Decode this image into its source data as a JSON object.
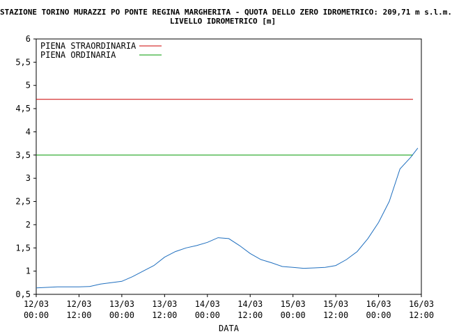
{
  "chart_data": {
    "type": "line",
    "title": "STAZIONE TORINO MURAZZI PO PONTE REGINA MARGHERITA - QUOTA DELLO ZERO IDROMETRICO: 209,71 m s.l.m.",
    "subtitle": "LIVELLO IDROMETRICO [m]",
    "xlabel": "DATA",
    "ylabel": "",
    "ylim": [
      0.5,
      6
    ],
    "yticks": [
      "0,5",
      "1",
      "1,5",
      "2",
      "2,5",
      "3",
      "3,5",
      "4",
      "4,5",
      "5",
      "5,5",
      "6"
    ],
    "xlim": [
      "12/03 00:00",
      "16/03 12:00"
    ],
    "xticks": [
      {
        "date": "12/03",
        "time": "00:00"
      },
      {
        "date": "12/03",
        "time": "12:00"
      },
      {
        "date": "13/03",
        "time": "00:00"
      },
      {
        "date": "13/03",
        "time": "12:00"
      },
      {
        "date": "14/03",
        "time": "00:00"
      },
      {
        "date": "14/03",
        "time": "12:00"
      },
      {
        "date": "15/03",
        "time": "00:00"
      },
      {
        "date": "15/03",
        "time": "12:00"
      },
      {
        "date": "16/03",
        "time": "00:00"
      },
      {
        "date": "16/03",
        "time": "12:00"
      }
    ],
    "grid": false,
    "legend_position": "top-left",
    "thresholds": [
      {
        "name": "PIENA STRAORDINARIA",
        "value": 4.7,
        "color": "#cc0000"
      },
      {
        "name": "PIENA ORDINARIA",
        "value": 3.5,
        "color": "#009900"
      }
    ],
    "series": [
      {
        "color": "#1f6fbf",
        "x": [
          "12/03 00:00",
          "12/03 03:00",
          "12/03 06:00",
          "12/03 09:00",
          "12/03 12:00",
          "12/03 15:00",
          "12/03 18:00",
          "12/03 21:00",
          "13/03 00:00",
          "13/03 03:00",
          "13/03 06:00",
          "13/03 09:00",
          "13/03 12:00",
          "13/03 15:00",
          "13/03 18:00",
          "13/03 21:00",
          "14/03 00:00",
          "14/03 03:00",
          "14/03 06:00",
          "14/03 09:00",
          "14/03 12:00",
          "14/03 15:00",
          "14/03 18:00",
          "14/03 21:00",
          "15/03 00:00",
          "15/03 03:00",
          "15/03 06:00",
          "15/03 09:00",
          "15/03 12:00",
          "15/03 15:00",
          "15/03 18:00",
          "15/03 21:00",
          "16/03 00:00",
          "16/03 03:00",
          "16/03 06:00",
          "16/03 09:00",
          "16/03 11:00"
        ],
        "values": [
          0.64,
          0.65,
          0.66,
          0.66,
          0.66,
          0.67,
          0.72,
          0.75,
          0.78,
          0.88,
          1.0,
          1.12,
          1.3,
          1.42,
          1.5,
          1.55,
          1.62,
          1.72,
          1.7,
          1.55,
          1.38,
          1.25,
          1.18,
          1.1,
          1.08,
          1.06,
          1.07,
          1.08,
          1.12,
          1.25,
          1.42,
          1.7,
          2.05,
          2.5,
          3.2,
          3.45,
          3.65
        ]
      }
    ]
  }
}
